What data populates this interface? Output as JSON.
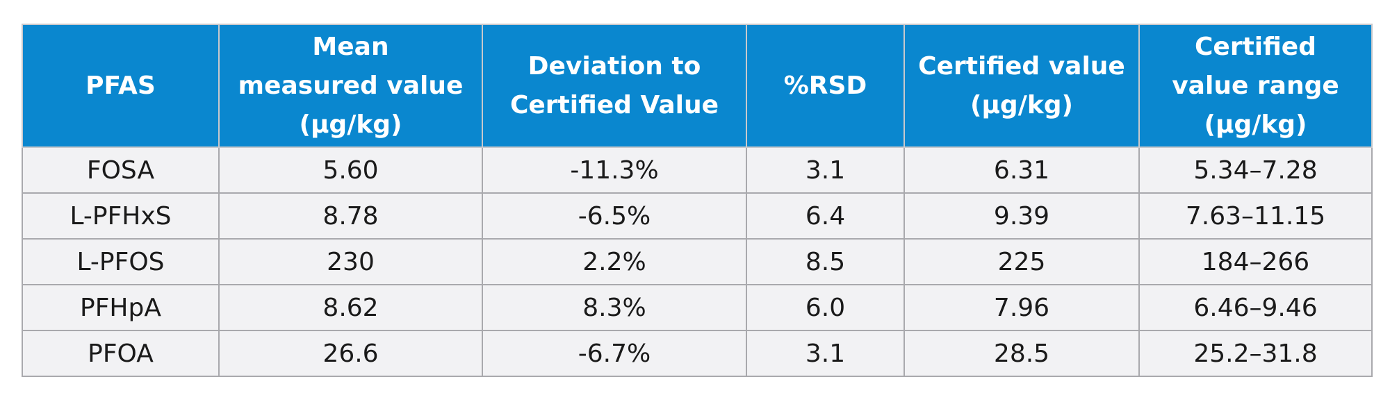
{
  "table": {
    "headers": [
      [
        "PFAS"
      ],
      [
        "Mean",
        "measured value",
        "(µg/kg)"
      ],
      [
        "Deviation to",
        "Certified Value"
      ],
      [
        "%RSD"
      ],
      [
        "Certified value",
        "(µg/kg)"
      ],
      [
        "Certified",
        "value range",
        "(µg/kg)"
      ]
    ],
    "rows": [
      [
        "FOSA",
        "5.60",
        "-11.3%",
        "3.1",
        "6.31",
        "5.34–7.28"
      ],
      [
        "L-PFHxS",
        "8.78",
        "-6.5%",
        "6.4",
        "9.39",
        "7.63–11.15"
      ],
      [
        "L-PFOS",
        "230",
        "2.2%",
        "8.5",
        "225",
        "184–266"
      ],
      [
        "PFHpA",
        "8.62",
        "8.3%",
        "6.0",
        "7.96",
        "6.46–9.46"
      ],
      [
        "PFOA",
        "26.6",
        "-6.7%",
        "3.1",
        "28.5",
        "25.2–31.8"
      ]
    ]
  },
  "colors": {
    "header_bg": "#0a87cf",
    "header_text": "#ffffff",
    "row_bg": "#f2f2f4",
    "border": "#a9a9ad"
  }
}
